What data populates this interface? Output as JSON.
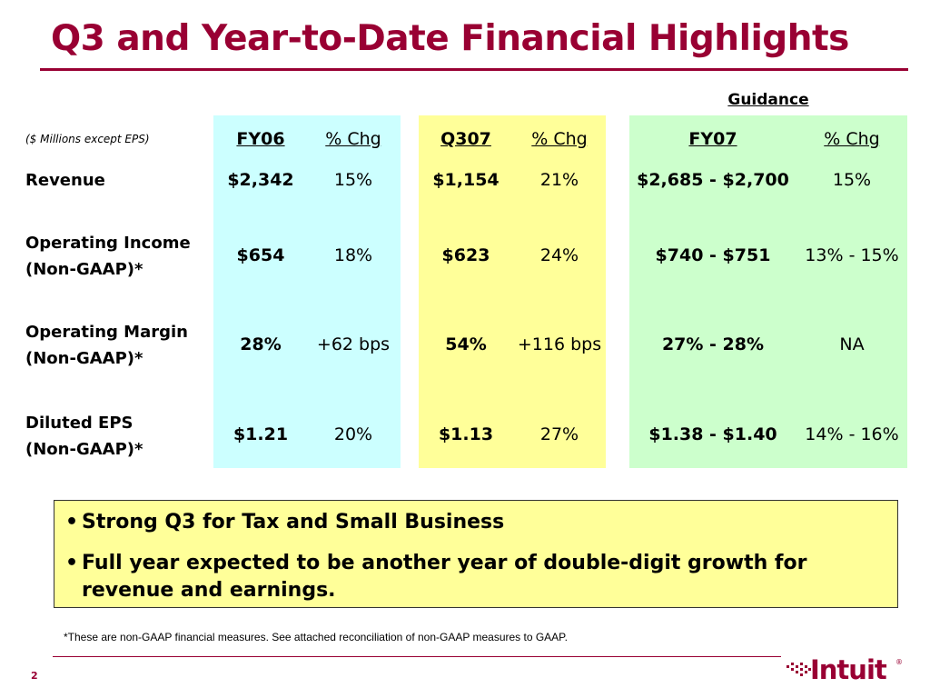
{
  "title": "Q3 and Year-to-Date Financial Highlights",
  "guidance_label": "Guidance",
  "units_note": "($ Millions except EPS)",
  "columns": {
    "fy06": "FY06",
    "fy06_chg": "% Chg",
    "q307": "Q307",
    "q307_chg": "% Chg",
    "fy07": "FY07",
    "fy07_chg": "% Chg"
  },
  "rows": [
    {
      "label_line1": "Revenue",
      "label_line2": "",
      "fy06": "$2,342",
      "fy06_chg": "15%",
      "q307": "$1,154",
      "q307_chg": "21%",
      "fy07": "$2,685 - $2,700",
      "fy07_chg": "15%"
    },
    {
      "label_line1": "Operating Income",
      "label_line2": "(Non-GAAP)*",
      "fy06": "$654",
      "fy06_chg": "18%",
      "q307": "$623",
      "q307_chg": "24%",
      "fy07": "$740 - $751",
      "fy07_chg": "13% - 15%"
    },
    {
      "label_line1": "Operating Margin",
      "label_line2": "(Non-GAAP)*",
      "fy06": "28%",
      "fy06_chg": "+62 bps",
      "q307": "54%",
      "q307_chg": "+116 bps",
      "fy07": "27% - 28%",
      "fy07_chg": "NA"
    },
    {
      "label_line1": "Diluted EPS",
      "label_line2": "(Non-GAAP)*",
      "fy06": "$1.21",
      "fy06_chg": "20%",
      "q307": "$1.13",
      "q307_chg": "27%",
      "fy07": "$1.38 - $1.40",
      "fy07_chg": "14% - 16%"
    }
  ],
  "bullets": [
    "Strong Q3 for Tax and Small Business",
    "Full year expected to be another year of double-digit growth for revenue and earnings."
  ],
  "bullet_glyph": "•",
  "footnote": "*These are non-GAAP financial measures. See attached reconciliation of non-GAAP measures to GAAP.",
  "page_number": "2",
  "logo": {
    "text": "Intuit",
    "reg": "®",
    "color": "#990033"
  },
  "colors": {
    "accent": "#990033",
    "fy06_bg": "#ccffff",
    "q307_bg": "#ffff99",
    "fy07_bg": "#ccffcc",
    "callout_bg": "#ffff99"
  }
}
